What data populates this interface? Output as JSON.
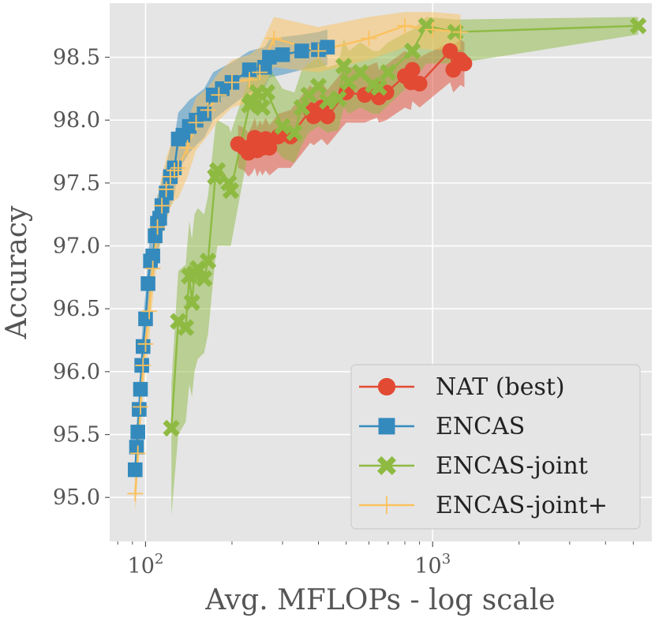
{
  "chart_data": {
    "type": "line",
    "title": "",
    "xlabel": "Avg. MFLOPs - log scale",
    "ylabel": "Accuracy",
    "xscale": "log",
    "xlim": [
      75,
      5800
    ],
    "ylim": [
      94.65,
      98.93
    ],
    "grid": true,
    "legend_position": "lower-right",
    "x_major_ticks": [
      {
        "value": 100,
        "base": "10",
        "exp": "2"
      },
      {
        "value": 1000,
        "base": "10",
        "exp": "3"
      }
    ],
    "x_minor_ticks": [
      80,
      90,
      200,
      300,
      400,
      500,
      600,
      700,
      800,
      900,
      2000,
      3000,
      4000,
      5000
    ],
    "y_ticks": [
      {
        "value": 95.0,
        "label": "95.0"
      },
      {
        "value": 95.5,
        "label": "95.5"
      },
      {
        "value": 96.0,
        "label": "96.0"
      },
      {
        "value": 96.5,
        "label": "96.5"
      },
      {
        "value": 97.0,
        "label": "97.0"
      },
      {
        "value": 97.5,
        "label": "97.5"
      },
      {
        "value": 98.0,
        "label": "98.0"
      },
      {
        "value": 98.5,
        "label": "98.5"
      }
    ],
    "series": [
      {
        "name": "NAT (best)",
        "color": "#e24a33",
        "marker": "circle",
        "x": [
          210,
          220,
          228,
          235,
          240,
          245,
          250,
          255,
          262,
          270,
          290,
          320,
          375,
          385,
          395,
          410,
          430,
          500,
          580,
          640,
          650,
          690,
          800,
          840,
          850,
          900,
          1150,
          1180,
          1250,
          1290
        ],
        "y": [
          97.81,
          97.78,
          97.74,
          97.8,
          97.86,
          97.76,
          97.84,
          97.78,
          97.85,
          97.78,
          97.87,
          97.87,
          98.08,
          98.03,
          98.06,
          98.1,
          98.03,
          98.22,
          98.2,
          98.25,
          98.18,
          98.22,
          98.35,
          98.3,
          98.4,
          98.29,
          98.55,
          98.4,
          98.48,
          98.45
        ],
        "band_lower": [
          97.62,
          97.6,
          97.55,
          97.58,
          97.62,
          97.55,
          97.6,
          97.56,
          97.6,
          97.56,
          97.62,
          97.62,
          97.82,
          97.8,
          97.82,
          97.85,
          97.8,
          97.98,
          97.98,
          98.02,
          97.98,
          98.0,
          98.1,
          98.08,
          98.15,
          98.1,
          98.3,
          98.22,
          98.28,
          98.26
        ],
        "band_upper": [
          97.96,
          97.94,
          97.9,
          97.96,
          98.02,
          97.94,
          98.0,
          97.96,
          98.02,
          97.96,
          98.05,
          98.08,
          98.28,
          98.24,
          98.26,
          98.3,
          98.24,
          98.42,
          98.42,
          98.46,
          98.4,
          98.44,
          98.55,
          98.52,
          98.58,
          98.5,
          98.62,
          98.6,
          98.64,
          98.62
        ]
      },
      {
        "name": "ENCAS",
        "color": "#348abd",
        "marker": "square",
        "x": [
          92,
          93,
          94,
          95,
          96,
          97,
          98,
          100,
          102,
          104,
          106,
          108,
          110,
          112,
          114,
          118,
          122,
          126,
          130,
          135,
          142,
          150,
          160,
          172,
          185,
          200,
          230,
          260,
          270,
          300,
          350,
          400,
          430
        ],
        "y": [
          95.22,
          95.4,
          95.52,
          95.7,
          95.86,
          96.05,
          96.2,
          96.42,
          96.7,
          96.88,
          96.92,
          97.08,
          97.18,
          97.22,
          97.32,
          97.42,
          97.55,
          97.62,
          97.85,
          97.88,
          97.95,
          98.0,
          98.05,
          98.2,
          98.25,
          98.3,
          98.4,
          98.42,
          98.5,
          98.52,
          98.55,
          98.56,
          98.58
        ],
        "band_lower": [
          95.05,
          95.22,
          95.34,
          95.5,
          95.66,
          95.84,
          96.0,
          96.2,
          96.48,
          96.66,
          96.7,
          96.86,
          96.96,
          97.0,
          97.1,
          97.2,
          97.32,
          97.4,
          97.62,
          97.66,
          97.74,
          97.8,
          97.86,
          98.0,
          98.06,
          98.12,
          98.22,
          98.26,
          98.34,
          98.36,
          98.4,
          98.42,
          98.44
        ],
        "band_upper": [
          95.38,
          95.58,
          95.7,
          95.9,
          96.06,
          96.26,
          96.42,
          96.64,
          96.92,
          97.1,
          97.14,
          97.3,
          97.4,
          97.44,
          97.54,
          97.64,
          97.78,
          97.86,
          98.06,
          98.1,
          98.16,
          98.2,
          98.25,
          98.38,
          98.42,
          98.46,
          98.55,
          98.58,
          98.64,
          98.66,
          98.68,
          98.7,
          98.72
        ]
      },
      {
        "name": "ENCAS-joint",
        "color": "#8eba42",
        "marker": "x",
        "x": [
          123,
          130,
          138,
          142,
          145,
          148,
          152,
          160,
          165,
          175,
          178,
          195,
          198,
          230,
          235,
          245,
          255,
          265,
          300,
          330,
          350,
          370,
          400,
          430,
          470,
          490,
          510,
          560,
          620,
          650,
          700,
          850,
          950,
          1200,
          5200
        ],
        "y": [
          95.55,
          96.4,
          96.35,
          96.76,
          96.55,
          96.78,
          96.82,
          96.74,
          96.88,
          97.55,
          97.6,
          97.5,
          97.44,
          98.12,
          98.15,
          98.22,
          98.1,
          98.22,
          97.95,
          97.9,
          98.1,
          98.2,
          98.27,
          98.15,
          98.17,
          98.43,
          98.3,
          98.38,
          98.28,
          98.26,
          98.38,
          98.55,
          98.75,
          98.7,
          98.75
        ],
        "band_lower": [
          94.85,
          95.5,
          95.6,
          95.9,
          95.8,
          96.0,
          96.1,
          96.15,
          96.3,
          96.9,
          97.0,
          97.0,
          97.0,
          97.8,
          97.82,
          97.85,
          97.8,
          97.85,
          97.7,
          97.66,
          97.8,
          97.9,
          97.95,
          97.9,
          97.92,
          98.1,
          98.05,
          98.1,
          98.05,
          98.05,
          98.12,
          98.3,
          98.45,
          98.45,
          98.68
        ],
        "band_upper": [
          95.9,
          96.8,
          96.85,
          97.2,
          97.05,
          97.25,
          97.3,
          97.25,
          97.4,
          97.95,
          98.0,
          97.95,
          97.9,
          98.35,
          98.4,
          98.45,
          98.38,
          98.45,
          98.25,
          98.22,
          98.4,
          98.45,
          98.5,
          98.42,
          98.45,
          98.65,
          98.55,
          98.62,
          98.55,
          98.55,
          98.62,
          98.72,
          98.82,
          98.8,
          98.82
        ]
      },
      {
        "name": "ENCAS-joint+",
        "color": "#fbc15e",
        "marker": "plus",
        "x": [
          92,
          94,
          96,
          98,
          100,
          103,
          106,
          110,
          114,
          118,
          122,
          126,
          130,
          140,
          150,
          165,
          180,
          200,
          230,
          250,
          280,
          400,
          600,
          800,
          1000,
          1250
        ],
        "y": [
          95.03,
          95.35,
          95.72,
          96.05,
          96.22,
          96.48,
          96.82,
          97.15,
          97.32,
          97.45,
          97.55,
          97.6,
          97.62,
          97.78,
          97.98,
          98.08,
          98.2,
          98.3,
          98.32,
          98.38,
          98.65,
          98.55,
          98.65,
          98.75,
          98.72,
          98.7
        ],
        "band_lower": [
          94.88,
          95.18,
          95.52,
          95.84,
          96.0,
          96.26,
          96.58,
          96.9,
          97.08,
          97.2,
          97.3,
          97.36,
          97.38,
          97.55,
          97.76,
          97.88,
          98.0,
          98.1,
          98.14,
          98.2,
          98.42,
          98.38,
          98.48,
          98.58,
          98.56,
          98.56
        ],
        "band_upper": [
          95.2,
          95.54,
          95.92,
          96.26,
          96.44,
          96.7,
          97.04,
          97.38,
          97.56,
          97.7,
          97.8,
          97.84,
          97.86,
          98.0,
          98.18,
          98.26,
          98.38,
          98.48,
          98.52,
          98.58,
          98.82,
          98.74,
          98.82,
          98.86,
          98.86,
          98.84
        ]
      }
    ]
  }
}
